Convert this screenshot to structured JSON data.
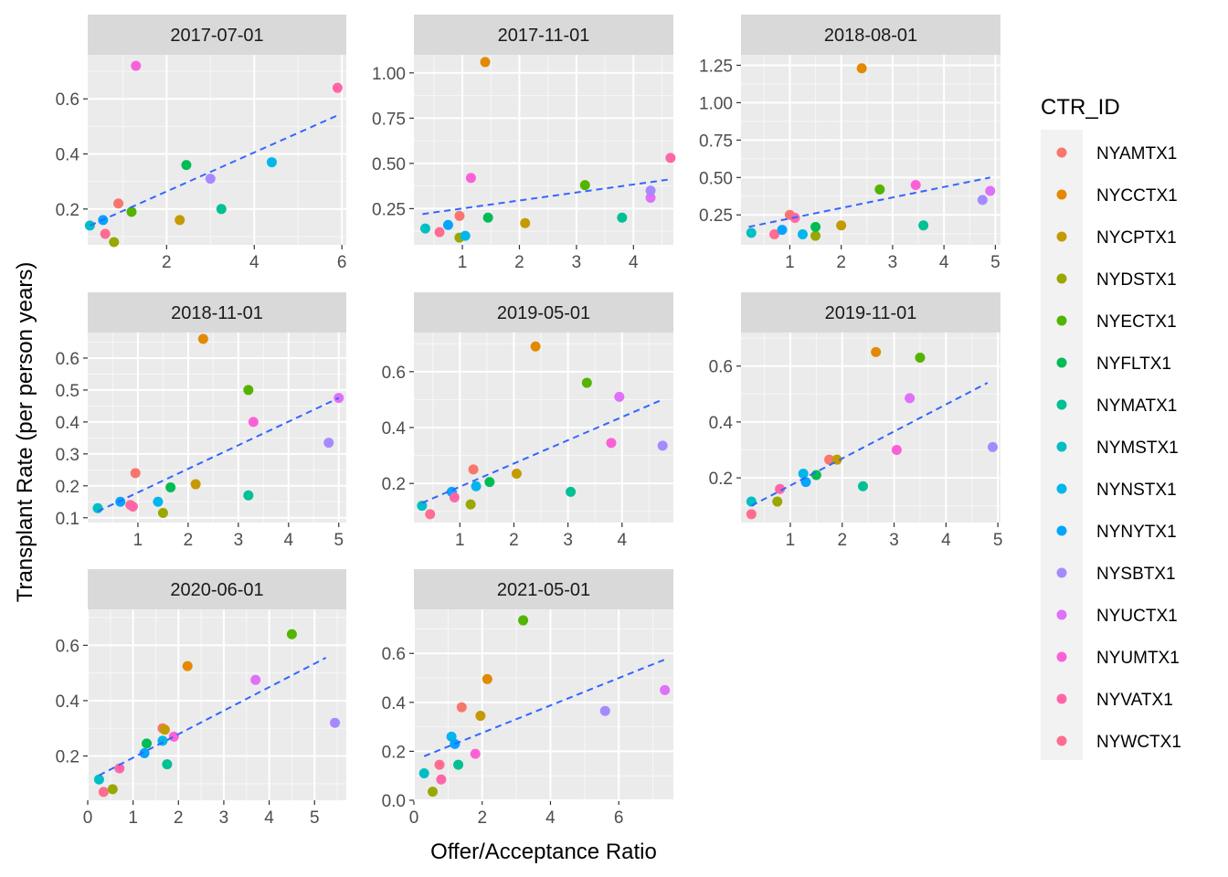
{
  "chart_data": {
    "type": "scatter",
    "layout": "facet-grid",
    "xlabel": "Offer/Acceptance Ratio",
    "ylabel": "Transplant Rate (per person years)",
    "legend": {
      "title": "CTR_ID",
      "placement": "right",
      "entries": [
        {
          "name": "NYAMTX1",
          "color": "#F8766D"
        },
        {
          "name": "NYCCTX1",
          "color": "#E38900"
        },
        {
          "name": "NYCPTX1",
          "color": "#C49A00"
        },
        {
          "name": "NYDSTX1",
          "color": "#99A800"
        },
        {
          "name": "NYECTX1",
          "color": "#53B400"
        },
        {
          "name": "NYFLTX1",
          "color": "#00BC56"
        },
        {
          "name": "NYMATX1",
          "color": "#00C094"
        },
        {
          "name": "NYMSTX1",
          "color": "#00BFC4"
        },
        {
          "name": "NYNSTX1",
          "color": "#00B6EB"
        },
        {
          "name": "NYNYTX1",
          "color": "#06A4FF"
        },
        {
          "name": "NYSBTX1",
          "color": "#A58AFF"
        },
        {
          "name": "NYUCTX1",
          "color": "#DF70F8"
        },
        {
          "name": "NYUMTX1",
          "color": "#FB61D7"
        },
        {
          "name": "NYVATX1",
          "color": "#FF66A8"
        },
        {
          "name": "NYWCTX1",
          "color": "#FF6C91"
        }
      ]
    },
    "trend_line": {
      "style": "dashed",
      "color": "#3366FF"
    },
    "panels": [
      {
        "title": "2017-07-01",
        "xlim": [
          0.2,
          6.1
        ],
        "ylim": [
          0.07,
          0.76
        ],
        "xticks": [
          2,
          4,
          6
        ],
        "yticks": [
          0.2,
          0.4,
          0.6
        ],
        "xticklabels": [
          "2",
          "4",
          "6"
        ],
        "yticklabels": [
          "0.2",
          "0.4",
          "0.6"
        ],
        "points": [
          {
            "ctr": "NYAMTX1",
            "x": 0.9,
            "y": 0.22
          },
          {
            "ctr": "NYECTX1",
            "x": 1.2,
            "y": 0.19
          },
          {
            "ctr": "NYMSTX1",
            "x": 0.25,
            "y": 0.14
          },
          {
            "ctr": "NYNYTX1",
            "x": 0.55,
            "y": 0.16
          },
          {
            "ctr": "NYWCTX1",
            "x": 0.6,
            "y": 0.11
          },
          {
            "ctr": "NYDSTX1",
            "x": 0.8,
            "y": 0.08
          },
          {
            "ctr": "NYUMTX1",
            "x": 1.3,
            "y": 0.72
          },
          {
            "ctr": "NYCPTX1",
            "x": 2.3,
            "y": 0.16
          },
          {
            "ctr": "NYFLTX1",
            "x": 2.45,
            "y": 0.36
          },
          {
            "ctr": "NYSBTX1",
            "x": 3.0,
            "y": 0.31
          },
          {
            "ctr": "NYMATX1",
            "x": 3.25,
            "y": 0.2
          },
          {
            "ctr": "NYNSTX1",
            "x": 4.4,
            "y": 0.37
          },
          {
            "ctr": "NYVATX1",
            "x": 5.9,
            "y": 0.64
          }
        ],
        "trend": {
          "x": [
            0.25,
            5.9
          ],
          "y": [
            0.14,
            0.54
          ]
        }
      },
      {
        "title": "2017-11-01",
        "xlim": [
          0.15,
          4.7
        ],
        "ylim": [
          0.05,
          1.1
        ],
        "xticks": [
          1,
          2,
          3,
          4
        ],
        "yticks": [
          0.25,
          0.5,
          0.75,
          1.0
        ],
        "xticklabels": [
          "1",
          "2",
          "3",
          "4"
        ],
        "yticklabels": [
          "0.25",
          "0.50",
          "0.75",
          "1.00"
        ],
        "points": [
          {
            "ctr": "NYMSTX1",
            "x": 0.35,
            "y": 0.14
          },
          {
            "ctr": "NYWCTX1",
            "x": 0.6,
            "y": 0.12
          },
          {
            "ctr": "NYNYTX1",
            "x": 0.75,
            "y": 0.16
          },
          {
            "ctr": "NYAMTX1",
            "x": 0.95,
            "y": 0.21
          },
          {
            "ctr": "NYDSTX1",
            "x": 0.95,
            "y": 0.09
          },
          {
            "ctr": "NYNSTX1",
            "x": 1.05,
            "y": 0.1
          },
          {
            "ctr": "NYUMTX1",
            "x": 1.15,
            "y": 0.42
          },
          {
            "ctr": "NYCCTX1",
            "x": 1.4,
            "y": 1.06
          },
          {
            "ctr": "NYFLTX1",
            "x": 1.45,
            "y": 0.2
          },
          {
            "ctr": "NYCPTX1",
            "x": 2.1,
            "y": 0.17
          },
          {
            "ctr": "NYECTX1",
            "x": 3.15,
            "y": 0.38
          },
          {
            "ctr": "NYMATX1",
            "x": 3.8,
            "y": 0.2
          },
          {
            "ctr": "NYUCTX1",
            "x": 4.3,
            "y": 0.31
          },
          {
            "ctr": "NYSBTX1",
            "x": 4.3,
            "y": 0.35
          },
          {
            "ctr": "NYVATX1",
            "x": 4.65,
            "y": 0.53
          }
        ],
        "trend": {
          "x": [
            0.3,
            4.6
          ],
          "y": [
            0.22,
            0.41
          ]
        }
      },
      {
        "title": "2018-08-01",
        "xlim": [
          0.05,
          5.1
        ],
        "ylim": [
          0.05,
          1.32
        ],
        "xticks": [
          1,
          2,
          3,
          4,
          5
        ],
        "yticks": [
          0.25,
          0.5,
          0.75,
          1.0,
          1.25
        ],
        "xticklabels": [
          "1",
          "2",
          "3",
          "4",
          "5"
        ],
        "yticklabels": [
          "0.25",
          "0.50",
          "0.75",
          "1.00",
          "1.25"
        ],
        "points": [
          {
            "ctr": "NYMSTX1",
            "x": 0.25,
            "y": 0.13
          },
          {
            "ctr": "NYWCTX1",
            "x": 0.7,
            "y": 0.12
          },
          {
            "ctr": "NYNYTX1",
            "x": 0.85,
            "y": 0.15
          },
          {
            "ctr": "NYAMTX1",
            "x": 1.0,
            "y": 0.25
          },
          {
            "ctr": "NYVATX1",
            "x": 1.1,
            "y": 0.23
          },
          {
            "ctr": "NYNSTX1",
            "x": 1.25,
            "y": 0.12
          },
          {
            "ctr": "NYDSTX1",
            "x": 1.5,
            "y": 0.11
          },
          {
            "ctr": "NYFLTX1",
            "x": 1.5,
            "y": 0.17
          },
          {
            "ctr": "NYCPTX1",
            "x": 2.0,
            "y": 0.18
          },
          {
            "ctr": "NYCCTX1",
            "x": 2.4,
            "y": 1.23
          },
          {
            "ctr": "NYECTX1",
            "x": 2.75,
            "y": 0.42
          },
          {
            "ctr": "NYUMTX1",
            "x": 3.45,
            "y": 0.45
          },
          {
            "ctr": "NYMATX1",
            "x": 3.6,
            "y": 0.18
          },
          {
            "ctr": "NYSBTX1",
            "x": 4.75,
            "y": 0.35
          },
          {
            "ctr": "NYUCTX1",
            "x": 4.9,
            "y": 0.41
          }
        ],
        "trend": {
          "x": [
            0.2,
            4.9
          ],
          "y": [
            0.17,
            0.5
          ]
        }
      },
      {
        "title": "2018-11-01",
        "xlim": [
          0.0,
          5.15
        ],
        "ylim": [
          0.085,
          0.68
        ],
        "xticks": [
          1,
          2,
          3,
          4,
          5
        ],
        "yticks": [
          0.1,
          0.2,
          0.3,
          0.4,
          0.5,
          0.6
        ],
        "xticklabels": [
          "1",
          "2",
          "3",
          "4",
          "5"
        ],
        "yticklabels": [
          "0.1",
          "0.2",
          "0.3",
          "0.4",
          "0.5",
          "0.6"
        ],
        "points": [
          {
            "ctr": "NYMSTX1",
            "x": 0.2,
            "y": 0.13
          },
          {
            "ctr": "NYNYTX1",
            "x": 0.65,
            "y": 0.15
          },
          {
            "ctr": "NYWCTX1",
            "x": 0.85,
            "y": 0.14
          },
          {
            "ctr": "NYVATX1",
            "x": 0.9,
            "y": 0.135
          },
          {
            "ctr": "NYAMTX1",
            "x": 0.95,
            "y": 0.24
          },
          {
            "ctr": "NYNSTX1",
            "x": 1.4,
            "y": 0.15
          },
          {
            "ctr": "NYDSTX1",
            "x": 1.5,
            "y": 0.115
          },
          {
            "ctr": "NYFLTX1",
            "x": 1.65,
            "y": 0.195
          },
          {
            "ctr": "NYCPTX1",
            "x": 2.15,
            "y": 0.205
          },
          {
            "ctr": "NYCCTX1",
            "x": 2.3,
            "y": 0.66
          },
          {
            "ctr": "NYECTX1",
            "x": 3.2,
            "y": 0.5
          },
          {
            "ctr": "NYMATX1",
            "x": 3.2,
            "y": 0.17
          },
          {
            "ctr": "NYUMTX1",
            "x": 3.3,
            "y": 0.4
          },
          {
            "ctr": "NYSBTX1",
            "x": 4.8,
            "y": 0.335
          },
          {
            "ctr": "NYUCTX1",
            "x": 5.0,
            "y": 0.475
          }
        ],
        "trend": {
          "x": [
            0.2,
            5.0
          ],
          "y": [
            0.12,
            0.475
          ]
        }
      },
      {
        "title": "2019-05-01",
        "xlim": [
          0.15,
          4.95
        ],
        "ylim": [
          0.06,
          0.74
        ],
        "xticks": [
          1,
          2,
          3,
          4
        ],
        "yticks": [
          0.2,
          0.4,
          0.6
        ],
        "xticklabels": [
          "1",
          "2",
          "3",
          "4"
        ],
        "yticklabels": [
          "0.2",
          "0.4",
          "0.6"
        ],
        "points": [
          {
            "ctr": "NYMSTX1",
            "x": 0.3,
            "y": 0.12
          },
          {
            "ctr": "NYWCTX1",
            "x": 0.45,
            "y": 0.09
          },
          {
            "ctr": "NYNYTX1",
            "x": 0.85,
            "y": 0.17
          },
          {
            "ctr": "NYVATX1",
            "x": 0.9,
            "y": 0.15
          },
          {
            "ctr": "NYDSTX1",
            "x": 1.2,
            "y": 0.125
          },
          {
            "ctr": "NYAMTX1",
            "x": 1.25,
            "y": 0.25
          },
          {
            "ctr": "NYNSTX1",
            "x": 1.3,
            "y": 0.19
          },
          {
            "ctr": "NYFLTX1",
            "x": 1.55,
            "y": 0.205
          },
          {
            "ctr": "NYCPTX1",
            "x": 2.05,
            "y": 0.235
          },
          {
            "ctr": "NYCCTX1",
            "x": 2.4,
            "y": 0.69
          },
          {
            "ctr": "NYMATX1",
            "x": 3.05,
            "y": 0.17
          },
          {
            "ctr": "NYECTX1",
            "x": 3.35,
            "y": 0.56
          },
          {
            "ctr": "NYUMTX1",
            "x": 3.8,
            "y": 0.345
          },
          {
            "ctr": "NYUCTX1",
            "x": 3.95,
            "y": 0.51
          },
          {
            "ctr": "NYSBTX1",
            "x": 4.75,
            "y": 0.335
          }
        ],
        "trend": {
          "x": [
            0.3,
            4.75
          ],
          "y": [
            0.13,
            0.5
          ]
        }
      },
      {
        "title": "2019-11-01",
        "xlim": [
          0.05,
          5.05
        ],
        "ylim": [
          0.04,
          0.72
        ],
        "xticks": [
          1,
          2,
          3,
          4,
          5
        ],
        "yticks": [
          0.2,
          0.4,
          0.6
        ],
        "xticklabels": [
          "1",
          "2",
          "3",
          "4",
          "5"
        ],
        "yticklabels": [
          "0.2",
          "0.4",
          "0.6"
        ],
        "points": [
          {
            "ctr": "NYWCTX1",
            "x": 0.25,
            "y": 0.07
          },
          {
            "ctr": "NYMSTX1",
            "x": 0.25,
            "y": 0.115
          },
          {
            "ctr": "NYDSTX1",
            "x": 0.75,
            "y": 0.115
          },
          {
            "ctr": "NYVATX1",
            "x": 0.8,
            "y": 0.16
          },
          {
            "ctr": "NYNSTX1",
            "x": 1.25,
            "y": 0.215
          },
          {
            "ctr": "NYNYTX1",
            "x": 1.3,
            "y": 0.185
          },
          {
            "ctr": "NYFLTX1",
            "x": 1.5,
            "y": 0.21
          },
          {
            "ctr": "NYAMTX1",
            "x": 1.75,
            "y": 0.265
          },
          {
            "ctr": "NYCPTX1",
            "x": 1.9,
            "y": 0.265
          },
          {
            "ctr": "NYMATX1",
            "x": 2.4,
            "y": 0.17
          },
          {
            "ctr": "NYCCTX1",
            "x": 2.65,
            "y": 0.65
          },
          {
            "ctr": "NYUMTX1",
            "x": 3.05,
            "y": 0.3
          },
          {
            "ctr": "NYUCTX1",
            "x": 3.3,
            "y": 0.485
          },
          {
            "ctr": "NYECTX1",
            "x": 3.5,
            "y": 0.63
          },
          {
            "ctr": "NYSBTX1",
            "x": 4.9,
            "y": 0.31
          }
        ],
        "trend": {
          "x": [
            0.25,
            4.8
          ],
          "y": [
            0.1,
            0.54
          ]
        }
      },
      {
        "title": "2020-06-01",
        "xlim": [
          0.0,
          5.7
        ],
        "ylim": [
          0.04,
          0.73
        ],
        "xticks": [
          0,
          1,
          2,
          3,
          4,
          5
        ],
        "yticks": [
          0.2,
          0.4,
          0.6
        ],
        "xticklabels": [
          "0",
          "1",
          "2",
          "3",
          "4",
          "5"
        ],
        "yticklabels": [
          "0.2",
          "0.4",
          "0.6"
        ],
        "points": [
          {
            "ctr": "NYMSTX1",
            "x": 0.25,
            "y": 0.115
          },
          {
            "ctr": "NYWCTX1",
            "x": 0.35,
            "y": 0.07
          },
          {
            "ctr": "NYDSTX1",
            "x": 0.55,
            "y": 0.08
          },
          {
            "ctr": "NYVATX1",
            "x": 0.7,
            "y": 0.155
          },
          {
            "ctr": "NYNYTX1",
            "x": 1.25,
            "y": 0.21
          },
          {
            "ctr": "NYFLTX1",
            "x": 1.3,
            "y": 0.245
          },
          {
            "ctr": "NYNSTX1",
            "x": 1.65,
            "y": 0.255
          },
          {
            "ctr": "NYAMTX1",
            "x": 1.65,
            "y": 0.3
          },
          {
            "ctr": "NYCPTX1",
            "x": 1.7,
            "y": 0.295
          },
          {
            "ctr": "NYMATX1",
            "x": 1.75,
            "y": 0.17
          },
          {
            "ctr": "NYUMTX1",
            "x": 1.9,
            "y": 0.27
          },
          {
            "ctr": "NYCCTX1",
            "x": 2.2,
            "y": 0.525
          },
          {
            "ctr": "NYUCTX1",
            "x": 3.7,
            "y": 0.475
          },
          {
            "ctr": "NYECTX1",
            "x": 4.5,
            "y": 0.64
          },
          {
            "ctr": "NYSBTX1",
            "x": 5.45,
            "y": 0.32
          }
        ],
        "trend": {
          "x": [
            0.25,
            5.25
          ],
          "y": [
            0.13,
            0.555
          ]
        }
      },
      {
        "title": "2021-05-01",
        "xlim": [
          0.0,
          7.6
        ],
        "ylim": [
          0.0,
          0.78
        ],
        "xticks": [
          0,
          2,
          4,
          6
        ],
        "yticks": [
          0.0,
          0.2,
          0.4,
          0.6
        ],
        "xticklabels": [
          "0",
          "2",
          "4",
          "6"
        ],
        "yticklabels": [
          "0.0",
          "0.2",
          "0.4",
          "0.6"
        ],
        "points": [
          {
            "ctr": "NYMSTX1",
            "x": 0.3,
            "y": 0.11
          },
          {
            "ctr": "NYDSTX1",
            "x": 0.55,
            "y": 0.035
          },
          {
            "ctr": "NYWCTX1",
            "x": 0.75,
            "y": 0.145
          },
          {
            "ctr": "NYVATX1",
            "x": 0.8,
            "y": 0.085
          },
          {
            "ctr": "NYNSTX1",
            "x": 1.1,
            "y": 0.26
          },
          {
            "ctr": "NYNYTX1",
            "x": 1.2,
            "y": 0.23
          },
          {
            "ctr": "NYMATX1",
            "x": 1.3,
            "y": 0.145
          },
          {
            "ctr": "NYAMTX1",
            "x": 1.4,
            "y": 0.38
          },
          {
            "ctr": "NYUMTX1",
            "x": 1.8,
            "y": 0.19
          },
          {
            "ctr": "NYCPTX1",
            "x": 1.95,
            "y": 0.345
          },
          {
            "ctr": "NYCCTX1",
            "x": 2.15,
            "y": 0.495
          },
          {
            "ctr": "NYECTX1",
            "x": 3.2,
            "y": 0.735
          },
          {
            "ctr": "NYSBTX1",
            "x": 5.6,
            "y": 0.365
          },
          {
            "ctr": "NYUCTX1",
            "x": 7.35,
            "y": 0.45
          }
        ],
        "trend": {
          "x": [
            0.3,
            7.35
          ],
          "y": [
            0.18,
            0.575
          ]
        }
      }
    ]
  }
}
